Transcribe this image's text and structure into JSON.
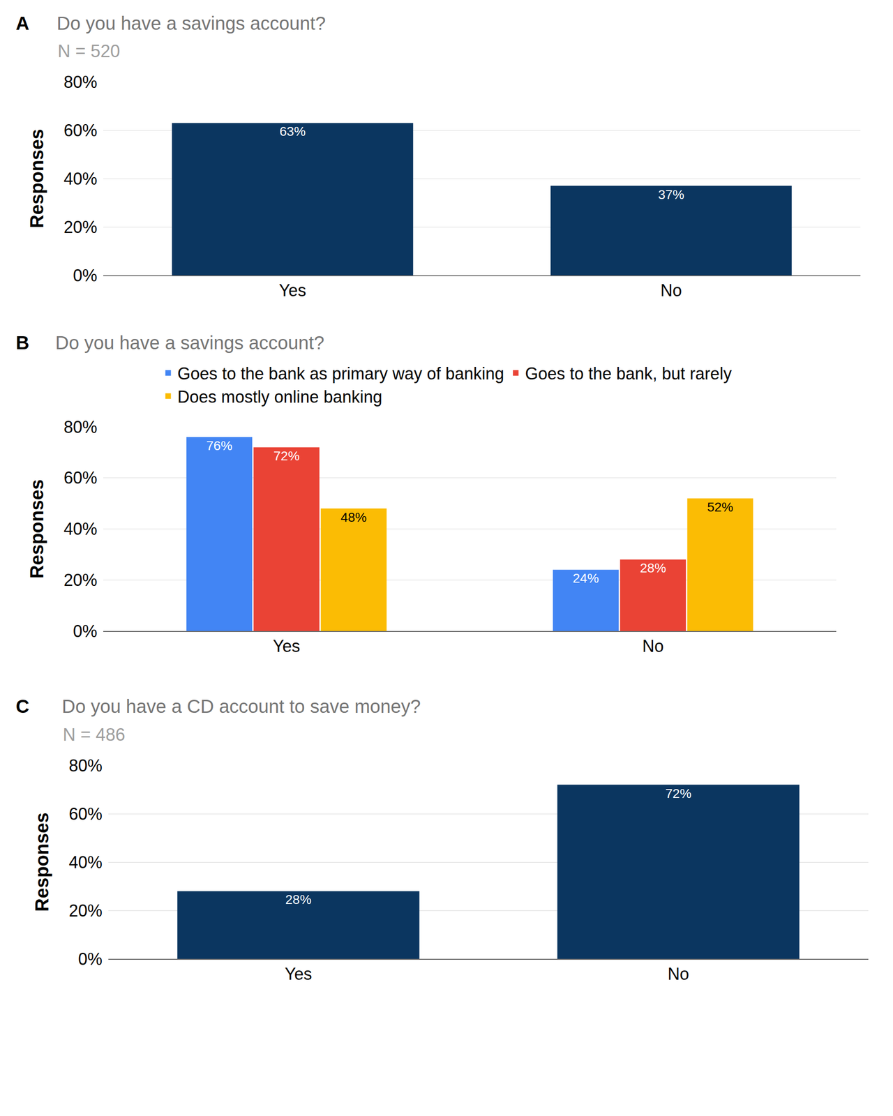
{
  "chart_data": [
    {
      "panel": "A",
      "type": "bar",
      "title": "Do you have a savings account?",
      "subtitle": "N = 520",
      "ylabel": "Responses",
      "categories": [
        "Yes",
        "No"
      ],
      "values": [
        63,
        37
      ],
      "value_labels": [
        "63%",
        "37%"
      ],
      "color": "#0b3660",
      "ylim": [
        0,
        80
      ],
      "yticks": [
        {
          "value": 0,
          "label": "0%"
        },
        {
          "value": 20,
          "label": "20%"
        },
        {
          "value": 40,
          "label": "40%"
        },
        {
          "value": 60,
          "label": "60%"
        },
        {
          "value": 80,
          "label": "80%"
        }
      ],
      "grid": true,
      "data_labels": true
    },
    {
      "panel": "B",
      "type": "bar",
      "title": "Do you have a savings account?",
      "ylabel": "Responses",
      "categories": [
        "Yes",
        "No"
      ],
      "series": [
        {
          "name": "Goes to the bank as primary way of banking",
          "color": "#4285f4",
          "values": [
            76,
            24
          ],
          "value_labels": [
            "76%",
            "24%"
          ]
        },
        {
          "name": "Goes to the bank, but rarely",
          "color": "#ea4335",
          "values": [
            72,
            28
          ],
          "value_labels": [
            "72%",
            "28%"
          ]
        },
        {
          "name": "Does mostly online banking",
          "color": "#fbbc04",
          "values": [
            48,
            52
          ],
          "value_labels": [
            "48%",
            "52%"
          ]
        }
      ],
      "ylim": [
        0,
        80
      ],
      "yticks": [
        {
          "value": 0,
          "label": "0%"
        },
        {
          "value": 20,
          "label": "20%"
        },
        {
          "value": 40,
          "label": "40%"
        },
        {
          "value": 60,
          "label": "60%"
        },
        {
          "value": 80,
          "label": "80%"
        }
      ],
      "grid": true,
      "data_labels": true,
      "legend": "top"
    },
    {
      "panel": "C",
      "type": "bar",
      "title": "Do you have a CD account to save money?",
      "subtitle": "N = 486",
      "ylabel": "Responses",
      "categories": [
        "Yes",
        "No"
      ],
      "values": [
        28,
        72
      ],
      "value_labels": [
        "28%",
        "72%"
      ],
      "color": "#0b3660",
      "ylim": [
        0,
        80
      ],
      "yticks": [
        {
          "value": 0,
          "label": "0%"
        },
        {
          "value": 20,
          "label": "20%"
        },
        {
          "value": 40,
          "label": "40%"
        },
        {
          "value": 60,
          "label": "60%"
        },
        {
          "value": 80,
          "label": "80%"
        }
      ],
      "grid": true,
      "data_labels": true
    }
  ]
}
